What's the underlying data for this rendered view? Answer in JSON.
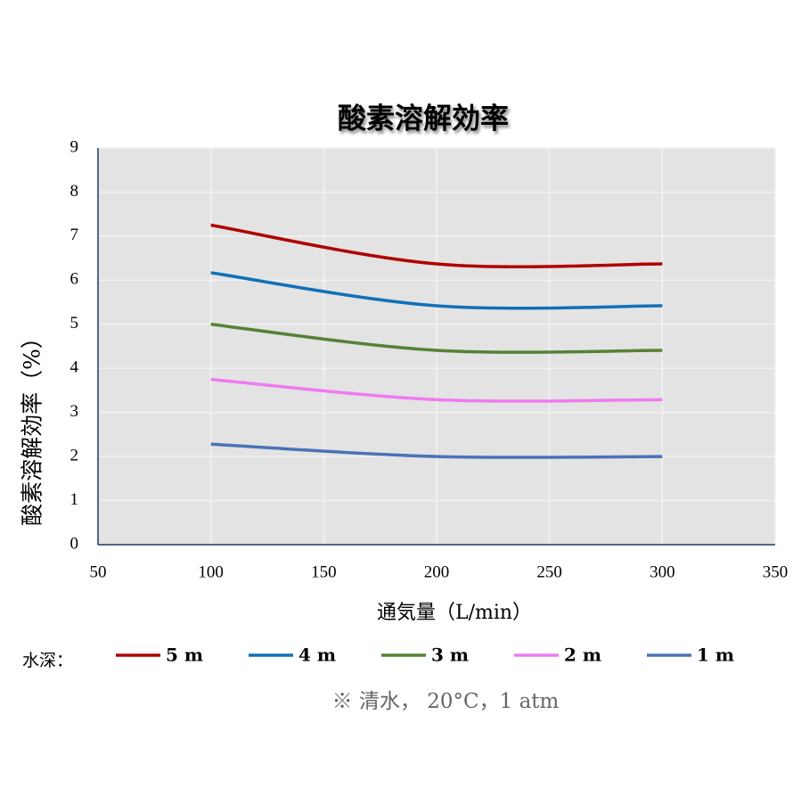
{
  "chart_data": {
    "type": "line",
    "title": "酸素溶解効率",
    "x_label": "通気量（L/min）",
    "y_label": "酸素溶解効率（%）",
    "legend_title": "水深：",
    "note": "※ 清水， 20°C，1 atm",
    "x": [
      100,
      200,
      300
    ],
    "series": [
      {
        "name": "5 m",
        "color": "#b00000",
        "values": [
          7.25,
          6.37,
          6.37
        ]
      },
      {
        "name": "4 m",
        "color": "#1170b8",
        "values": [
          6.17,
          5.42,
          5.42
        ]
      },
      {
        "name": "3 m",
        "color": "#548235",
        "values": [
          5.0,
          4.41,
          4.41
        ]
      },
      {
        "name": "2 m",
        "color": "#f07af0",
        "values": [
          3.75,
          3.29,
          3.29
        ]
      },
      {
        "name": "1 m",
        "color": "#4a72b8",
        "values": [
          2.28,
          2.0,
          2.0
        ]
      }
    ],
    "xlim": [
      50,
      350
    ],
    "xticks": [
      50,
      100,
      150,
      200,
      250,
      300,
      350
    ],
    "ylim": [
      0,
      9
    ],
    "yticks": [
      0,
      1,
      2,
      3,
      4,
      5,
      6,
      7,
      8,
      9
    ],
    "grid": true,
    "smooth": true,
    "legend": "bottom"
  }
}
